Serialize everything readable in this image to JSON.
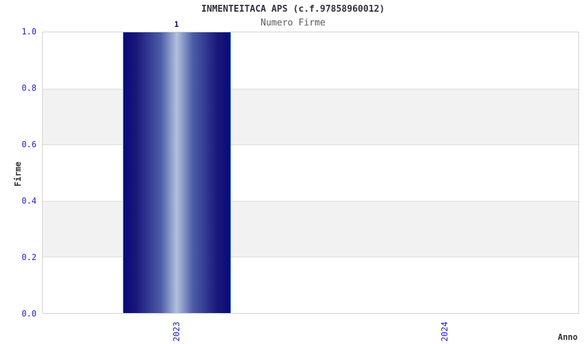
{
  "chart_data": {
    "type": "bar",
    "title": "INMENTEITACA APS (c.f.97858960012)",
    "subtitle": "Numero Firme",
    "xlabel": "Anno",
    "ylabel": "Firme",
    "categories": [
      "2023",
      "2024"
    ],
    "values": [
      1,
      0
    ],
    "ylim": [
      0,
      1
    ],
    "ytick_labels": [
      "1.0",
      "0.8",
      "0.6",
      "0.4",
      "0.2",
      "0.0"
    ],
    "ytick_interval": 0.2,
    "bar_value_labels": [
      "1"
    ],
    "legend_position": "none",
    "grid": "horizontal gridlines every 0.2 with alternating gray bands (0.2-0.4, 0.6-0.8)",
    "colors": {
      "bar_gradient_edge": "#0a0979",
      "bar_gradient_center": "#b2c1dd",
      "bar_outline_left": "#7fb2e4",
      "bar_outline_right": "#3c8cf0",
      "tick_label": "#2222cc",
      "axis_label": "#333333",
      "title": "#31313f",
      "subtitle": "#5a5a5a",
      "value_label": "#000066",
      "band": "#f2f2f2",
      "gridline": "#dcdcdc",
      "plot_border": "#d3d3d3",
      "background": "#ffffff"
    }
  }
}
